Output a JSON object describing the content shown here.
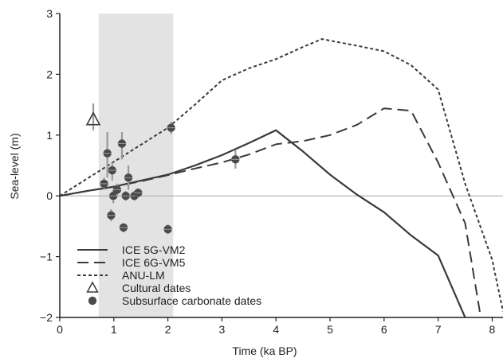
{
  "chart_data": {
    "type": "line",
    "xlabel": "Time (ka BP)",
    "ylabel": "Sea-level (m)",
    "xlim": [
      0,
      8.2
    ],
    "ylim": [
      -2,
      3
    ],
    "x_ticks": [
      0,
      1,
      2,
      3,
      4,
      5,
      6,
      7,
      8
    ],
    "y_ticks": [
      -2,
      -1,
      0,
      1,
      2,
      3
    ],
    "grid": false,
    "zero_line": true,
    "shaded_region": {
      "x_start": 0.72,
      "x_end": 2.1,
      "color": "#e3e3e3"
    },
    "series": [
      {
        "name": "ICE 5G-VM2",
        "style": "solid",
        "color": "#3a3a3a",
        "x": [
          0,
          0.5,
          1,
          1.5,
          2,
          2.5,
          3,
          3.5,
          4,
          4.5,
          5,
          5.5,
          6,
          6.5,
          7,
          7.5,
          7.9
        ],
        "y": [
          0,
          0.08,
          0.15,
          0.25,
          0.35,
          0.5,
          0.67,
          0.87,
          1.08,
          0.73,
          0.35,
          0.02,
          -0.27,
          -0.65,
          -0.98,
          -2.0,
          -2.6
        ]
      },
      {
        "name": "ICE 6G-VM5",
        "style": "dashed",
        "color": "#3a3a3a",
        "x": [
          0,
          0.5,
          1,
          1.5,
          2,
          2.5,
          3,
          3.5,
          4,
          4.5,
          5,
          5.5,
          6,
          6.5,
          7,
          7.5,
          7.9
        ],
        "y": [
          0,
          0.08,
          0.15,
          0.24,
          0.34,
          0.45,
          0.55,
          0.68,
          0.85,
          0.9,
          1.0,
          1.17,
          1.44,
          1.4,
          0.55,
          -0.45,
          -2.6
        ]
      },
      {
        "name": "ANU-LM",
        "style": "dotted",
        "color": "#3a3a3a",
        "x": [
          0,
          0.5,
          1,
          1.5,
          2,
          2.5,
          3,
          3.5,
          4,
          4.5,
          4.85,
          5.5,
          6,
          6.5,
          7,
          7.5,
          8,
          8.2
        ],
        "y": [
          0,
          0.28,
          0.56,
          0.84,
          1.12,
          1.5,
          1.9,
          2.1,
          2.25,
          2.45,
          2.58,
          2.47,
          2.38,
          2.15,
          1.75,
          0.2,
          -1.05,
          -1.9
        ]
      }
    ],
    "cultural_dates": {
      "name": "Cultural dates",
      "marker": "triangle",
      "points": [
        {
          "x": 0.62,
          "y": 1.25,
          "err_low": 1.08,
          "err_high": 1.52
        }
      ]
    },
    "carbonate_dates": {
      "name": "Subsurface carbonate dates",
      "marker": "circle",
      "points": [
        {
          "x": 0.82,
          "y": 0.2,
          "err_low": 0.1,
          "err_high": 0.3
        },
        {
          "x": 0.88,
          "y": 0.7,
          "err_low": 0.3,
          "err_high": 1.05
        },
        {
          "x": 0.95,
          "y": -0.32,
          "err_low": -0.42,
          "err_high": -0.22
        },
        {
          "x": 0.97,
          "y": 0.42,
          "err_low": 0.25,
          "err_high": 0.55
        },
        {
          "x": 0.99,
          "y": 0.0,
          "err_low": -0.12,
          "err_high": 0.1
        },
        {
          "x": 1.06,
          "y": 0.1,
          "err_low": 0.0,
          "err_high": 0.2
        },
        {
          "x": 1.15,
          "y": 0.86,
          "err_low": 0.6,
          "err_high": 1.05
        },
        {
          "x": 1.18,
          "y": -0.52,
          "err_low": -0.6,
          "err_high": -0.45
        },
        {
          "x": 1.22,
          "y": 0.0,
          "err_low": -0.08,
          "err_high": 0.08
        },
        {
          "x": 1.27,
          "y": 0.3,
          "err_low": 0.1,
          "err_high": 0.5
        },
        {
          "x": 1.38,
          "y": 0.0,
          "err_low": -0.08,
          "err_high": 0.08
        },
        {
          "x": 1.45,
          "y": 0.05,
          "err_low": -0.03,
          "err_high": 0.12
        },
        {
          "x": 2.0,
          "y": -0.55,
          "err_low": -0.63,
          "err_high": -0.47
        },
        {
          "x": 2.06,
          "y": 1.12,
          "err_low": 1.02,
          "err_high": 1.22
        },
        {
          "x": 3.25,
          "y": 0.6,
          "err_low": 0.45,
          "err_high": 0.75
        }
      ]
    },
    "legend": {
      "placement": "bottom-left",
      "entries": [
        "ICE 5G-VM2",
        "ICE 6G-VM5",
        "ANU-LM",
        "Cultural dates",
        "Subsurface carbonate dates"
      ]
    }
  }
}
